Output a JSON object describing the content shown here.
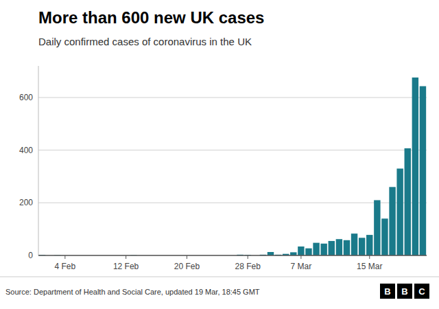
{
  "chart_data": {
    "type": "bar",
    "title": "More than 600 new UK cases",
    "subtitle": "Daily confirmed cases of coronavirus in the UK",
    "source": "Source: Department of Health and Social Care, updated 19 Mar, 18:45 GMT",
    "logo": [
      "B",
      "B",
      "C"
    ],
    "color": "#1a7a8a",
    "categories": [
      null,
      null,
      null,
      "4 Feb",
      null,
      null,
      null,
      null,
      null,
      null,
      null,
      "12 Feb",
      null,
      null,
      null,
      null,
      null,
      null,
      null,
      "20 Feb",
      null,
      null,
      null,
      null,
      null,
      null,
      null,
      "28 Feb",
      null,
      null,
      null,
      null,
      null,
      null,
      "7 Mar",
      null,
      null,
      null,
      null,
      null,
      null,
      null,
      null,
      "15 Mar",
      null,
      null,
      null,
      null,
      null,
      null,
      null
    ],
    "values": [
      2,
      0,
      1,
      0,
      0,
      0,
      0,
      0,
      0,
      0,
      0,
      0,
      1,
      0,
      0,
      0,
      0,
      0,
      0,
      0,
      0,
      0,
      0,
      0,
      0,
      0,
      3,
      2,
      0,
      3,
      13,
      3,
      6,
      12,
      34,
      27,
      48,
      45,
      55,
      62,
      58,
      83,
      67,
      78,
      210,
      140,
      260,
      330,
      407,
      676,
      643
    ],
    "ylim": [
      0,
      720
    ],
    "yticks": [
      0,
      200,
      400,
      600
    ],
    "grid": true
  }
}
